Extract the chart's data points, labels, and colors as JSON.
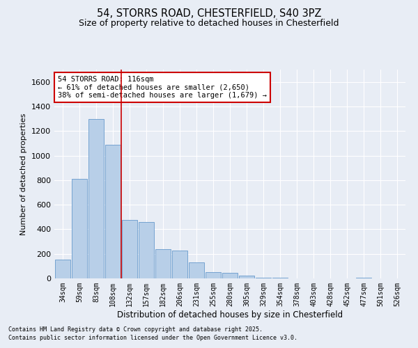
{
  "title1": "54, STORRS ROAD, CHESTERFIELD, S40 3PZ",
  "title2": "Size of property relative to detached houses in Chesterfield",
  "xlabel": "Distribution of detached houses by size in Chesterfield",
  "ylabel": "Number of detached properties",
  "footnote1": "Contains HM Land Registry data © Crown copyright and database right 2025.",
  "footnote2": "Contains public sector information licensed under the Open Government Licence v3.0.",
  "bar_labels": [
    "34sqm",
    "59sqm",
    "83sqm",
    "108sqm",
    "132sqm",
    "157sqm",
    "182sqm",
    "206sqm",
    "231sqm",
    "255sqm",
    "280sqm",
    "305sqm",
    "329sqm",
    "354sqm",
    "378sqm",
    "403sqm",
    "428sqm",
    "452sqm",
    "477sqm",
    "501sqm",
    "526sqm"
  ],
  "bar_values": [
    155,
    810,
    1300,
    1090,
    475,
    460,
    240,
    225,
    130,
    50,
    45,
    20,
    5,
    5,
    0,
    0,
    0,
    0,
    5,
    0,
    0
  ],
  "bar_color": "#b8cfe8",
  "bar_edge_color": "#6699cc",
  "background_color": "#e8edf5",
  "grid_color": "#ffffff",
  "vline_x_index": 3.5,
  "vline_color": "#cc0000",
  "annotation_text": "54 STORRS ROAD: 116sqm\n← 61% of detached houses are smaller (2,650)\n38% of semi-detached houses are larger (1,679) →",
  "annotation_box_color": "#ffffff",
  "annotation_box_edge": "#cc0000",
  "ylim": [
    0,
    1700
  ],
  "yticks": [
    0,
    200,
    400,
    600,
    800,
    1000,
    1200,
    1400,
    1600
  ]
}
